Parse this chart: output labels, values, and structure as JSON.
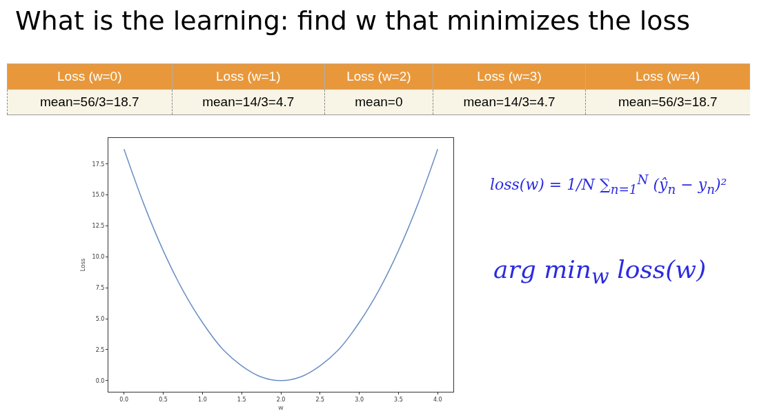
{
  "chart_data": [
    {
      "type": "other",
      "title": "What is the learning: find w that minimizes the loss",
      "categories": [
        "Loss (w=0)",
        "Loss (w=1)",
        "Loss (w=2)",
        "Loss (w=3)",
        "Loss (w=4)"
      ],
      "annotations": [
        "mean=56/3=18.7",
        "mean=14/3=4.7",
        "mean=0",
        "mean=14/3=4.7",
        "mean=56/3=18.7"
      ]
    },
    {
      "type": "line",
      "xlabel": "w",
      "ylabel": "Loss",
      "x": [
        0,
        0.25,
        0.5,
        0.75,
        1,
        1.25,
        1.5,
        1.75,
        2,
        2.25,
        2.5,
        2.75,
        3,
        3.25,
        3.5,
        3.75,
        4
      ],
      "values": [
        18.7,
        14.3,
        10.5,
        7.3,
        4.7,
        2.6,
        1.2,
        0.3,
        0,
        0.3,
        1.2,
        2.6,
        4.7,
        7.3,
        10.5,
        14.3,
        18.7
      ],
      "color": "#6a8ec4",
      "xlim": [
        -0.2,
        4.2
      ],
      "ylim": [
        -0.9,
        19.6
      ],
      "xticks": [
        {
          "value": 0,
          "label": "0.0"
        },
        {
          "value": 0.5,
          "label": "0.5"
        },
        {
          "value": 1,
          "label": "1.0"
        },
        {
          "value": 1.5,
          "label": "1.5"
        },
        {
          "value": 2,
          "label": "2.0"
        },
        {
          "value": 2.5,
          "label": "2.5"
        },
        {
          "value": 3,
          "label": "3.0"
        },
        {
          "value": 3.5,
          "label": "3.5"
        },
        {
          "value": 4,
          "label": "4.0"
        }
      ],
      "yticks": [
        {
          "value": 0,
          "label": "0.0"
        },
        {
          "value": 2.5,
          "label": "2.5"
        },
        {
          "value": 5,
          "label": "5.0"
        },
        {
          "value": 7.5,
          "label": "7.5"
        },
        {
          "value": 10,
          "label": "10.0"
        },
        {
          "value": 12.5,
          "label": "12.5"
        },
        {
          "value": 15,
          "label": "15.0"
        },
        {
          "value": 17.5,
          "label": "17.5"
        }
      ],
      "grid": false,
      "legend": false,
      "marker": "none",
      "line_style": "solid"
    },
    {
      "type": "other",
      "annotations": [
        "loss(w) = 1/N ∑$_{n=1}$$^{N}$ (ŷ$_{n}$ − y$_{n}$)²",
        "arg min$_{w}$ loss(w)"
      ]
    }
  ]
}
